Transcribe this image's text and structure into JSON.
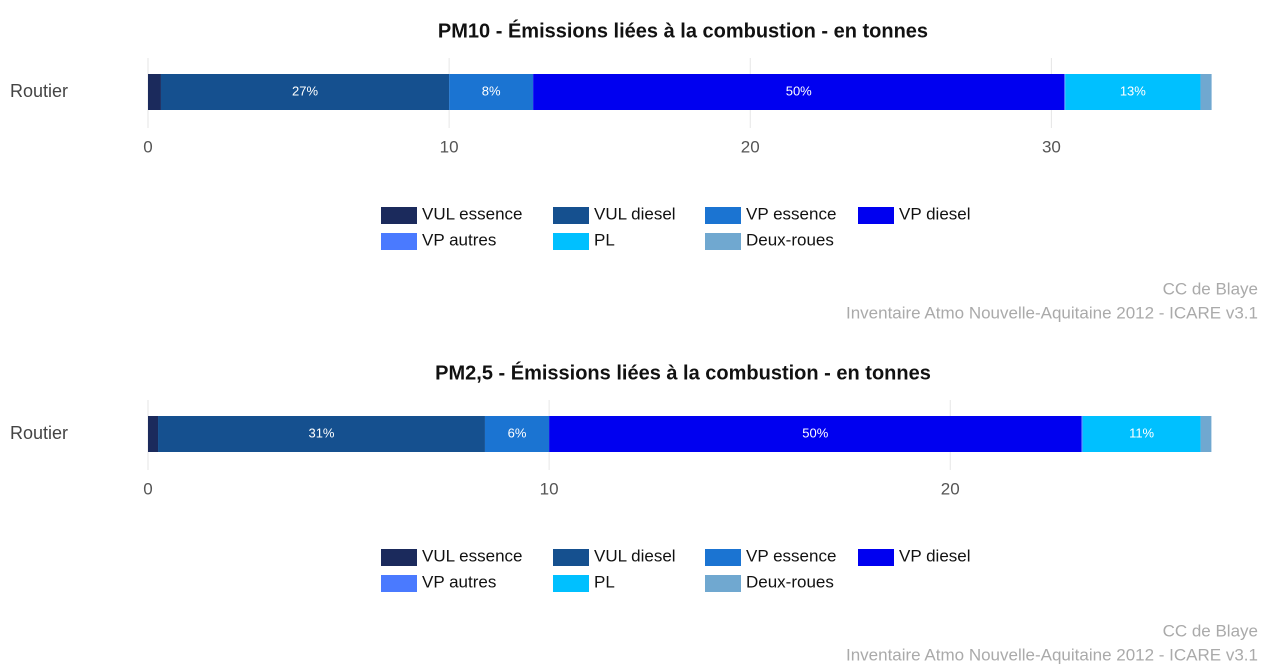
{
  "chart_data": [
    {
      "type": "stacked-barh",
      "title": "PM10 - Émissions liées à la combustion - en tonnes",
      "categories": [
        "Routier"
      ],
      "series": [
        {
          "name": "VUL essence",
          "color": "#1b2a5c",
          "values": [
            0.43
          ]
        },
        {
          "name": "VUL diesel",
          "color": "#15508f",
          "values": [
            9.57
          ],
          "value_labels": [
            "27%"
          ]
        },
        {
          "name": "VP essence",
          "color": "#1b74d2",
          "values": [
            2.79
          ],
          "value_labels": [
            "8%"
          ]
        },
        {
          "name": "VP diesel",
          "color": "#0000f0",
          "values": [
            17.64
          ],
          "value_labels": [
            "50%"
          ]
        },
        {
          "name": "VP autres",
          "color": "#4a7aff",
          "values": [
            0.03
          ]
        },
        {
          "name": "PL",
          "color": "#00c0ff",
          "values": [
            4.49
          ],
          "value_labels": [
            "13%"
          ]
        },
        {
          "name": "Deux-roues",
          "color": "#70a8d0",
          "values": [
            0.37
          ]
        }
      ],
      "xlim": [
        0,
        35.3
      ],
      "xticks": [
        0,
        10,
        20,
        30
      ],
      "grid": true,
      "caption": [
        "CC de Blaye",
        "Inventaire Atmo Nouvelle-Aquitaine 2012 - ICARE v3.1"
      ]
    },
    {
      "type": "stacked-barh",
      "title": "PM2,5 - Émissions liées à la combustion - en tonnes",
      "categories": [
        "Routier"
      ],
      "series": [
        {
          "name": "VUL essence",
          "color": "#1b2a5c",
          "values": [
            0.25
          ]
        },
        {
          "name": "VUL diesel",
          "color": "#15508f",
          "values": [
            8.15
          ],
          "value_labels": [
            "31%"
          ]
        },
        {
          "name": "VP essence",
          "color": "#1b74d2",
          "values": [
            1.6
          ],
          "value_labels": [
            "6%"
          ]
        },
        {
          "name": "VP diesel",
          "color": "#0000f0",
          "values": [
            13.27
          ],
          "value_labels": [
            "50%"
          ]
        },
        {
          "name": "VP autres",
          "color": "#4a7aff",
          "values": [
            0.03
          ]
        },
        {
          "name": "PL",
          "color": "#00c0ff",
          "values": [
            2.94
          ],
          "value_labels": [
            "11%"
          ]
        },
        {
          "name": "Deux-roues",
          "color": "#70a8d0",
          "values": [
            0.27
          ]
        }
      ],
      "xlim": [
        0,
        26.5
      ],
      "xticks": [
        0,
        10,
        20
      ],
      "grid": true,
      "caption": [
        "CC de Blaye",
        "Inventaire Atmo Nouvelle-Aquitaine 2012 - ICARE v3.1"
      ]
    }
  ]
}
